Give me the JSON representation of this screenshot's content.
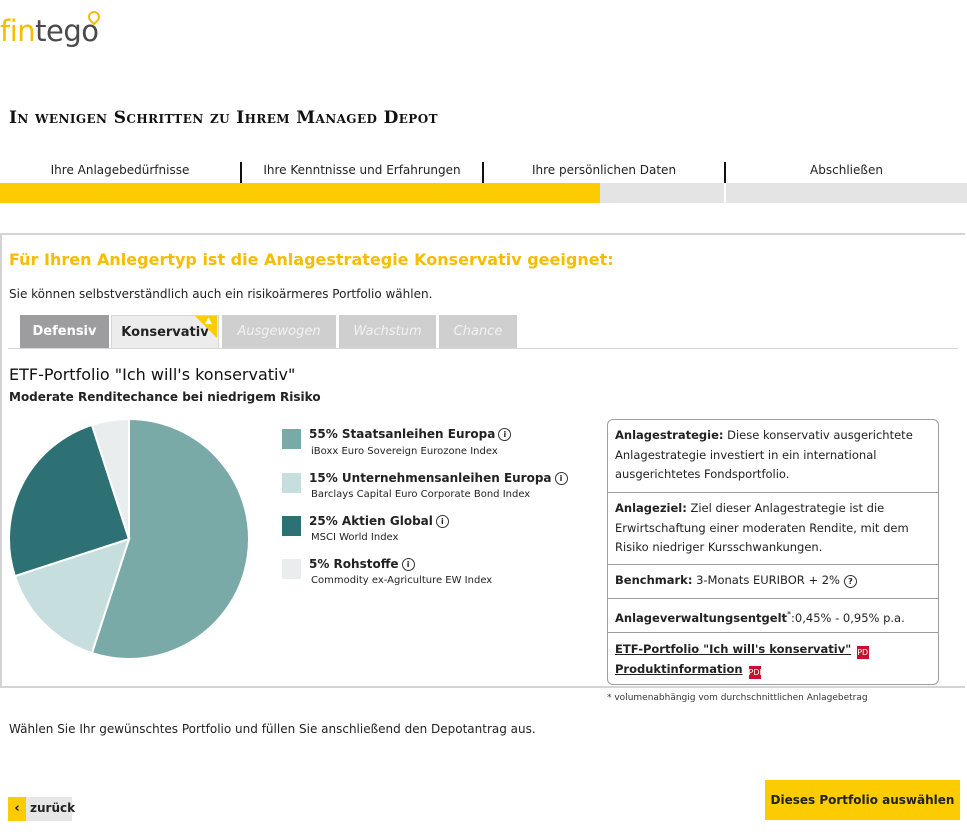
{
  "logo": {
    "part1": "fin",
    "part2": "tego"
  },
  "page_title": "In wenigen Schritten zu Ihrem Managed Depot",
  "steps": [
    {
      "label": "Ihre Anlagebedürfnisse"
    },
    {
      "label": "Ihre Kenntnisse und Erfahrungen"
    },
    {
      "label": "Ihre persönlichen Daten"
    },
    {
      "label": "Abschließen"
    }
  ],
  "progress": {
    "completed_fraction": 0.62
  },
  "headline": "Für Ihren Anlegertyp ist die Anlagestrategie Konservativ geeignet:",
  "subline": "Sie können selbstverständlich auch ein risikoärmeres Portfolio wählen.",
  "tabs": [
    {
      "label": "Defensiv",
      "state": "enabled"
    },
    {
      "label": "Konservativ",
      "state": "active"
    },
    {
      "label": "Ausgewogen",
      "state": "disabled"
    },
    {
      "label": "Wachstum",
      "state": "disabled"
    },
    {
      "label": "Chance",
      "state": "disabled"
    }
  ],
  "portfolio": {
    "title": "ETF-Portfolio \"Ich will's konservativ\"",
    "subtitle": "Moderate Renditechance bei niedrigem Risiko"
  },
  "chart_data": {
    "type": "pie",
    "slices": [
      {
        "label": "55% Staatsanleihen Europa",
        "sub": "iBoxx Euro Sovereign Eurozone Index",
        "value": 55,
        "color": "#7aaaa8"
      },
      {
        "label": "15% Unternehmensanleihen Europa",
        "sub": "Barclays Capital Euro Corporate Bond Index",
        "value": 15,
        "color": "#c7dede"
      },
      {
        "label": "25% Aktien Global",
        "sub": "MSCI World Index",
        "value": 25,
        "color": "#2e7175"
      },
      {
        "label": "5% Rohstoffe",
        "sub": "Commodity ex-Agriculture EW Index",
        "value": 5,
        "color": "#e9edee"
      }
    ]
  },
  "info": {
    "strategy_label": "Anlagestrategie:",
    "strategy_text": "Diese konservativ ausgerichtete Anlagestrategie investiert in ein international ausgerichtetes Fondsportfolio.",
    "goal_label": "Anlageziel:",
    "goal_text": "Ziel dieser Anlagestrategie ist die Erwirtschaftung einer moderaten Rendite, mit dem Risiko niedriger Kursschwankungen.",
    "benchmark_label": "Benchmark:",
    "benchmark_text": "3-Monats EURIBOR + 2%",
    "fee_label": "Anlageverwaltungsentgelt",
    "fee_mark": "*",
    "fee_text": ":0,45% - 0,95% p.a.",
    "doc_link": "ETF-Portfolio \"Ich will's konservativ\"",
    "product_link": "Produktinformation",
    "pdf_icon_text": "PDF"
  },
  "footnote": "* volumenabhängig vom durchschnittlichen Anlagebetrag",
  "choose_text": "Wählen Sie Ihr gewünschtes Portfolio und füllen Sie anschließend den Depotantrag aus.",
  "buttons": {
    "back": "zurück",
    "back_arrow": "‹",
    "select": "Dieses Portfolio auswählen"
  },
  "colors": {
    "accent": "#fccb00",
    "accent_text": "#f7bc00",
    "pdf": "#c8102e"
  }
}
